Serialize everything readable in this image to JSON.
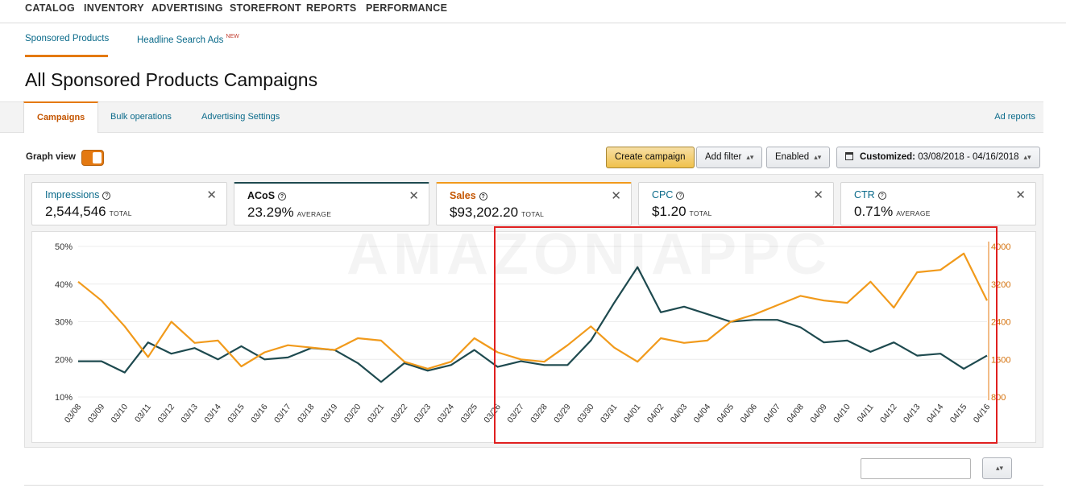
{
  "nav": {
    "items": [
      "CATALOG",
      "INVENTORY",
      "ADVERTISING",
      "STOREFRONT",
      "REPORTS",
      "PERFORMANCE"
    ]
  },
  "subtabs": {
    "sponsored_products": "Sponsored Products",
    "headline_search_ads": "Headline Search Ads",
    "new_badge": "NEW"
  },
  "page_title": "All Sponsored Products Campaigns",
  "tabs": {
    "campaigns": "Campaigns",
    "bulk_operations": "Bulk operations",
    "advertising_settings": "Advertising Settings",
    "ad_reports": "Ad reports"
  },
  "controls": {
    "graph_view": "Graph view",
    "create_campaign": "Create campaign",
    "add_filter": "Add filter",
    "enabled": "Enabled",
    "date_label": "Customized:",
    "date_range": "03/08/2018 - 04/16/2018"
  },
  "metrics": [
    {
      "label": "Impressions",
      "value": "2,544,546",
      "suffix": "TOTAL"
    },
    {
      "label": "ACoS",
      "value": "23.29%",
      "suffix": "AVERAGE"
    },
    {
      "label": "Sales",
      "value": "$93,202.20",
      "suffix": "TOTAL"
    },
    {
      "label": "CPC",
      "value": "$1.20",
      "suffix": "TOTAL"
    },
    {
      "label": "CTR",
      "value": "0.71%",
      "suffix": "AVERAGE"
    }
  ],
  "watermark": "AMAZONIAPPC",
  "colors": {
    "acos_line": "#1e4a4f",
    "sales_line": "#f19a1b",
    "accent": "#e47911",
    "highlight": "#e02020"
  },
  "chart_data": {
    "type": "line",
    "x": [
      "03/08",
      "03/09",
      "03/10",
      "03/11",
      "03/12",
      "03/13",
      "03/14",
      "03/15",
      "03/16",
      "03/17",
      "03/18",
      "03/19",
      "03/20",
      "03/21",
      "03/22",
      "03/23",
      "03/24",
      "03/25",
      "03/26",
      "03/27",
      "03/28",
      "03/29",
      "03/30",
      "03/31",
      "04/01",
      "04/02",
      "04/03",
      "04/04",
      "04/05",
      "04/06",
      "04/07",
      "04/08",
      "04/09",
      "04/10",
      "04/11",
      "04/12",
      "04/13",
      "04/14",
      "04/15",
      "04/16"
    ],
    "series": [
      {
        "name": "ACoS",
        "axis": "left",
        "color": "#1e4a4f",
        "values": [
          19.5,
          19.5,
          16.5,
          24.5,
          21.5,
          23,
          20,
          23.5,
          20,
          20.5,
          23,
          22.5,
          19,
          14,
          19,
          17,
          18.5,
          22.5,
          18,
          19.5,
          18.5,
          18.5,
          25,
          35,
          44.5,
          32.5,
          34,
          32,
          30,
          30.5,
          30.5,
          28.5,
          24.5,
          25,
          22,
          24.5,
          21,
          21.5,
          17.5,
          21
        ]
      },
      {
        "name": "Sales",
        "axis": "right",
        "color": "#f19a1b",
        "values": [
          3250,
          2850,
          2300,
          1650,
          2400,
          1950,
          2000,
          1450,
          1750,
          1900,
          1850,
          1800,
          2050,
          2000,
          1550,
          1400,
          1550,
          2050,
          1750,
          1600,
          1550,
          1900,
          2300,
          1850,
          1550,
          2050,
          1950,
          2000,
          2400,
          2550,
          2750,
          2950,
          2850,
          2800,
          3250,
          2700,
          3450,
          3500,
          3850,
          2850
        ]
      }
    ],
    "y_left": {
      "ticks": [
        "10%",
        "20%",
        "30%",
        "40%",
        "50%"
      ],
      "range": [
        10,
        50
      ]
    },
    "y_right": {
      "ticks": [
        "800",
        "1600",
        "2400",
        "3200",
        "4000"
      ],
      "range": [
        800,
        4000
      ]
    },
    "grid": true
  }
}
